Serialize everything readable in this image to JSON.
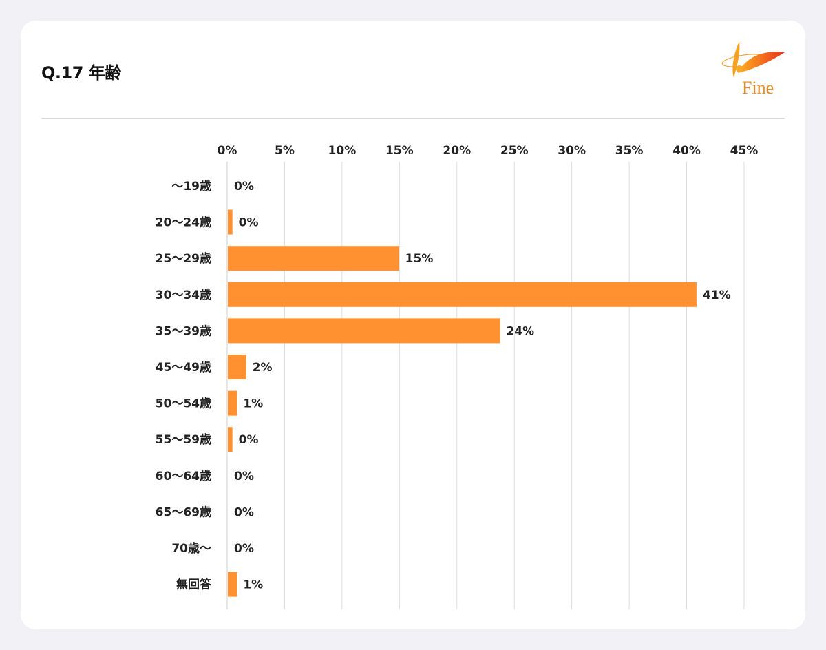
{
  "title": "Q.17 年齢",
  "logo": {
    "text": "Fine"
  },
  "colors": {
    "bar": "#ff9130",
    "grid": "#dddddd",
    "text": "#222222",
    "background": "#f2f1f6",
    "card": "#ffffff"
  },
  "chart_data": {
    "type": "bar",
    "orientation": "horizontal",
    "title": "Q.17 年齢",
    "categories": [
      "〜19歳",
      "20〜24歳",
      "25〜29歳",
      "30〜34歳",
      "35〜39歳",
      "45〜49歳",
      "50〜54歳",
      "55〜59歳",
      "60〜64歳",
      "65〜69歳",
      "70歳〜",
      "無回答"
    ],
    "values": [
      0,
      0.4,
      14.9,
      40.8,
      23.7,
      1.6,
      0.8,
      0.4,
      0,
      0,
      0,
      0.8
    ],
    "data_labels": [
      "0%",
      "0%",
      "15%",
      "41%",
      "24%",
      "2%",
      "1%",
      "0%",
      "0%",
      "0%",
      "0%",
      "1%"
    ],
    "xlim": [
      0,
      45
    ],
    "xticks": [
      0,
      5,
      10,
      15,
      20,
      25,
      30,
      35,
      40,
      45
    ],
    "xtick_labels": [
      "0%",
      "5%",
      "10%",
      "15%",
      "20%",
      "25%",
      "30%",
      "35%",
      "40%",
      "45%"
    ],
    "axis_position": "top",
    "grid": true,
    "legend": "none"
  }
}
